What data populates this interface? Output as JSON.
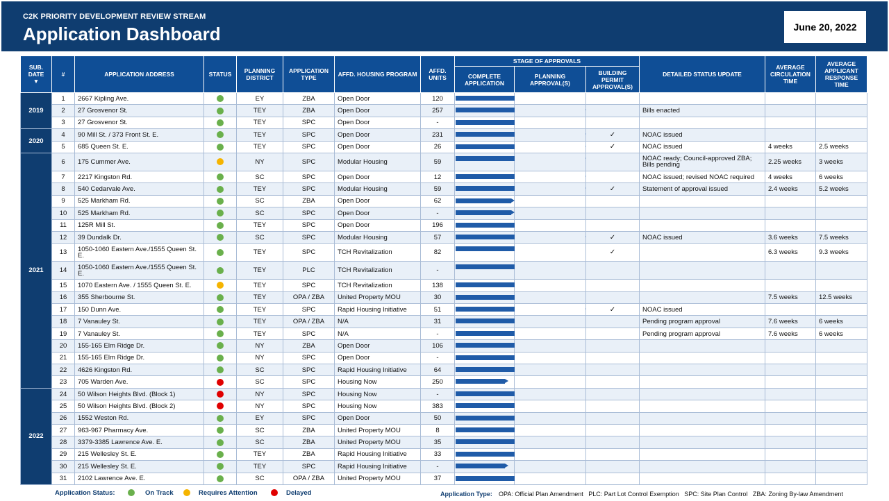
{
  "header": {
    "kicker": "C2K PRIORITY DEVELOPMENT REVIEW STREAM",
    "title": "Application Dashboard",
    "date": "June 20, 2022"
  },
  "columns": {
    "sub_date": "SUB. DATE",
    "num": "#",
    "address": "APPLICATION ADDRESS",
    "status": "STATUS",
    "district": "PLANNING DISTRICT",
    "type": "APPLICATION TYPE",
    "program": "AFFD. HOUSING PROGRAM",
    "units": "AFFD. UNITS",
    "stage_group": "STAGE OF APPROVALS",
    "stage_complete": "COMPLETE APPLICATION",
    "stage_planning": "PLANNING APPROVAL(S)",
    "stage_building": "BUILDING PERMIT APPROVAL(S)",
    "update": "DETAILED STATUS UPDATE",
    "circ": "AVERAGE CIRCULATION TIME",
    "resp": "AVERAGE APPLICANT RESPONSE TIME"
  },
  "status_colors": {
    "green": "#6ab04c",
    "yellow": "#f5b400",
    "red": "#e00000"
  },
  "rows": [
    {
      "year": "2019",
      "num": "1",
      "address": "2667 Kipling Ave.",
      "status": "green",
      "district": "EY",
      "type": "ZBA",
      "program": "Open Door",
      "units": "120",
      "stage": 1.15,
      "building": "",
      "update": "",
      "circ": "",
      "resp": ""
    },
    {
      "year": "2019",
      "num": "2",
      "address": "27 Grosvenor St.",
      "status": "green",
      "district": "TEY",
      "type": "ZBA",
      "program": "Open Door",
      "units": "257",
      "stage": 2.0,
      "building": "",
      "update": "Bills enacted",
      "circ": "",
      "resp": ""
    },
    {
      "year": "2019",
      "num": "3",
      "address": "27 Grosvenor St.",
      "status": "green",
      "district": "TEY",
      "type": "SPC",
      "program": "Open Door",
      "units": "-",
      "stage": 1.45,
      "building": "",
      "update": "",
      "circ": "",
      "resp": ""
    },
    {
      "year": "2020",
      "num": "4",
      "address": "90 Mill St. / 373 Front St. E.",
      "status": "green",
      "district": "TEY",
      "type": "SPC",
      "program": "Open Door",
      "units": "231",
      "stage": 2.0,
      "building": "✓",
      "update": "NOAC issued",
      "circ": "",
      "resp": ""
    },
    {
      "year": "2020",
      "num": "5",
      "address": "685 Queen St. E.",
      "status": "green",
      "district": "TEY",
      "type": "SPC",
      "program": "Open Door",
      "units": "26",
      "stage": 2.0,
      "building": "✓",
      "update": "NOAC issued",
      "circ": "4 weeks",
      "resp": "2.5 weeks"
    },
    {
      "year": "2021",
      "num": "6",
      "address": "175 Cummer Ave.",
      "status": "yellow",
      "district": "NY",
      "type": "SPC",
      "program": "Modular Housing",
      "units": "59",
      "stage": 2.0,
      "building": "",
      "update": "NOAC ready; Council-approved ZBA; Bills pending",
      "circ": "2.25 weeks",
      "resp": "3 weeks"
    },
    {
      "year": "2021",
      "num": "7",
      "address": "2217 Kingston Rd.",
      "status": "green",
      "district": "SC",
      "type": "SPC",
      "program": "Open Door",
      "units": "12",
      "stage": 2.0,
      "building": "",
      "update": "NOAC issued; revised NOAC required",
      "circ": "4 weeks",
      "resp": "6 weeks"
    },
    {
      "year": "2021",
      "num": "8",
      "address": "540 Cedarvale Ave.",
      "status": "green",
      "district": "TEY",
      "type": "SPC",
      "program": "Modular Housing",
      "units": "59",
      "stage": 2.0,
      "building": "✓",
      "update": "Statement of approval issued",
      "circ": "2.4 weeks",
      "resp": "5.2 weeks"
    },
    {
      "year": "2021",
      "num": "9",
      "address": "525 Markham Rd.",
      "status": "green",
      "district": "SC",
      "type": "ZBA",
      "program": "Open Door",
      "units": "62",
      "stage": 1.0,
      "building": "",
      "update": "",
      "circ": "",
      "resp": ""
    },
    {
      "year": "2021",
      "num": "10",
      "address": "525 Markham Rd.",
      "status": "green",
      "district": "SC",
      "type": "SPC",
      "program": "Open Door",
      "units": "-",
      "stage": 1.0,
      "building": "",
      "update": "",
      "circ": "",
      "resp": ""
    },
    {
      "year": "2021",
      "num": "11",
      "address": "125R Mill St.",
      "status": "green",
      "district": "TEY",
      "type": "SPC",
      "program": "Open Door",
      "units": "196",
      "stage": 1.3,
      "building": "",
      "update": "",
      "circ": "",
      "resp": ""
    },
    {
      "year": "2021",
      "num": "12",
      "address": "39 Dundalk Dr.",
      "status": "green",
      "district": "SC",
      "type": "SPC",
      "program": "Modular Housing",
      "units": "57",
      "stage": 2.0,
      "building": "✓",
      "update": "NOAC issued",
      "circ": "3.6 weeks",
      "resp": "7.5 weeks"
    },
    {
      "year": "2021",
      "num": "13",
      "address": "1050-1060 Eastern Ave./1555 Queen St. E.",
      "status": "green",
      "district": "TEY",
      "type": "SPC",
      "program": "TCH Revitalization",
      "units": "82",
      "stage": 1.7,
      "building": "✓",
      "update": "",
      "circ": "6.3 weeks",
      "resp": "9.3 weeks"
    },
    {
      "year": "2021",
      "num": "14",
      "address": "1050-1060 Eastern Ave./1555 Queen St. E.",
      "status": "green",
      "district": "TEY",
      "type": "PLC",
      "program": "TCH Revitalization",
      "units": "-",
      "stage": 1.3,
      "building": "",
      "update": "",
      "circ": "",
      "resp": ""
    },
    {
      "year": "2021",
      "num": "15",
      "address": "1070 Eastern Ave. / 1555 Queen St. E.",
      "status": "yellow",
      "district": "TEY",
      "type": "SPC",
      "program": "TCH Revitalization",
      "units": "138",
      "stage": 1.3,
      "building": "",
      "update": "",
      "circ": "",
      "resp": ""
    },
    {
      "year": "2021",
      "num": "16",
      "address": "355 Sherbourne St.",
      "status": "green",
      "district": "TEY",
      "type": "OPA / ZBA",
      "program": "United Property MOU",
      "units": "30",
      "stage": 1.85,
      "building": "",
      "update": "",
      "circ": "7.5 weeks",
      "resp": "12.5 weeks"
    },
    {
      "year": "2021",
      "num": "17",
      "address": "150 Dunn Ave.",
      "status": "green",
      "district": "TEY",
      "type": "SPC",
      "program": "Rapid Housing Initiative",
      "units": "51",
      "stage": 2.0,
      "building": "✓",
      "update": "NOAC issued",
      "circ": "",
      "resp": ""
    },
    {
      "year": "2021",
      "num": "18",
      "address": "7 Vanauley St.",
      "status": "green",
      "district": "TEY",
      "type": "OPA / ZBA",
      "program": "N/A",
      "units": "31",
      "stage": 1.85,
      "building": "",
      "update": "Pending program approval",
      "circ": "7.6 weeks",
      "resp": "6 weeks"
    },
    {
      "year": "2021",
      "num": "19",
      "address": "7 Vanauley St.",
      "status": "green",
      "district": "TEY",
      "type": "SPC",
      "program": "N/A",
      "units": "-",
      "stage": 1.3,
      "building": "",
      "update": "Pending program approval",
      "circ": "7.6 weeks",
      "resp": "6 weeks"
    },
    {
      "year": "2021",
      "num": "20",
      "address": "155-165 Elm Ridge Dr.",
      "status": "green",
      "district": "NY",
      "type": "ZBA",
      "program": "Open Door",
      "units": "106",
      "stage": 1.85,
      "building": "",
      "update": "",
      "circ": "",
      "resp": ""
    },
    {
      "year": "2021",
      "num": "21",
      "address": "155-165 Elm Ridge Dr.",
      "status": "green",
      "district": "NY",
      "type": "SPC",
      "program": "Open Door",
      "units": "-",
      "stage": 1.2,
      "building": "",
      "update": "",
      "circ": "",
      "resp": ""
    },
    {
      "year": "2021",
      "num": "22",
      "address": "4626 Kingston Rd.",
      "status": "green",
      "district": "SC",
      "type": "SPC",
      "program": "Rapid Housing Initiative",
      "units": "64",
      "stage": 1.7,
      "building": "",
      "update": "",
      "circ": "",
      "resp": ""
    },
    {
      "year": "2021",
      "num": "23",
      "address": "705 Warden Ave.",
      "status": "red",
      "district": "SC",
      "type": "SPC",
      "program": "Housing Now",
      "units": "250",
      "stage": 0.9,
      "building": "",
      "update": "",
      "circ": "",
      "resp": ""
    },
    {
      "year": "2022",
      "num": "24",
      "address": "50 Wilson Heights Blvd. (Block 1)",
      "status": "red",
      "district": "NY",
      "type": "SPC",
      "program": "Housing Now",
      "units": "-",
      "stage": 1.15,
      "building": "",
      "update": "",
      "circ": "",
      "resp": ""
    },
    {
      "year": "2022",
      "num": "25",
      "address": "50 Wilson Heights Blvd. (Block 2)",
      "status": "red",
      "district": "NY",
      "type": "SPC",
      "program": "Housing Now",
      "units": "383",
      "stage": 1.15,
      "building": "",
      "update": "",
      "circ": "",
      "resp": ""
    },
    {
      "year": "2022",
      "num": "26",
      "address": "1552 Weston Rd.",
      "status": "green",
      "district": "EY",
      "type": "SPC",
      "program": "Open Door",
      "units": "50",
      "stage": 1.15,
      "building": "",
      "update": "",
      "circ": "",
      "resp": ""
    },
    {
      "year": "2022",
      "num": "27",
      "address": "963-967 Pharmacy Ave.",
      "status": "green",
      "district": "SC",
      "type": "ZBA",
      "program": "United Property MOU",
      "units": "8",
      "stage": 1.15,
      "building": "",
      "update": "",
      "circ": "",
      "resp": ""
    },
    {
      "year": "2022",
      "num": "28",
      "address": "3379-3385 Lawrence Ave.  E.",
      "status": "green",
      "district": "SC",
      "type": "ZBA",
      "program": "United Property MOU",
      "units": "35",
      "stage": 1.15,
      "building": "",
      "update": "",
      "circ": "",
      "resp": ""
    },
    {
      "year": "2022",
      "num": "29",
      "address": "215 Wellesley St. E.",
      "status": "green",
      "district": "TEY",
      "type": "ZBA",
      "program": "Rapid Housing Initiative",
      "units": "33",
      "stage": 1.85,
      "building": "",
      "update": "",
      "circ": "",
      "resp": ""
    },
    {
      "year": "2022",
      "num": "30",
      "address": "215 Wellesley St. E.",
      "status": "green",
      "district": "TEY",
      "type": "SPC",
      "program": "Rapid Housing Initiative",
      "units": "-",
      "stage": 0.9,
      "building": "",
      "update": "",
      "circ": "",
      "resp": ""
    },
    {
      "year": "2022",
      "num": "31",
      "address": "2102 Lawrence Ave. E.",
      "status": "green",
      "district": "SC",
      "type": "OPA / ZBA",
      "program": "United Property MOU",
      "units": "37",
      "stage": 1.15,
      "building": "",
      "update": "",
      "circ": "",
      "resp": ""
    }
  ],
  "legend": {
    "status_label": "Application Status:",
    "on_track": "On Track",
    "attention": "Requires Attention",
    "delayed": "Delayed",
    "type_label": "Application Type:",
    "types": "OPA: Official Plan Amendment   PLC: Part Lot Control Exemption   SPC: Site Plan Control   ZBA: Zoning By-law Amendment"
  }
}
